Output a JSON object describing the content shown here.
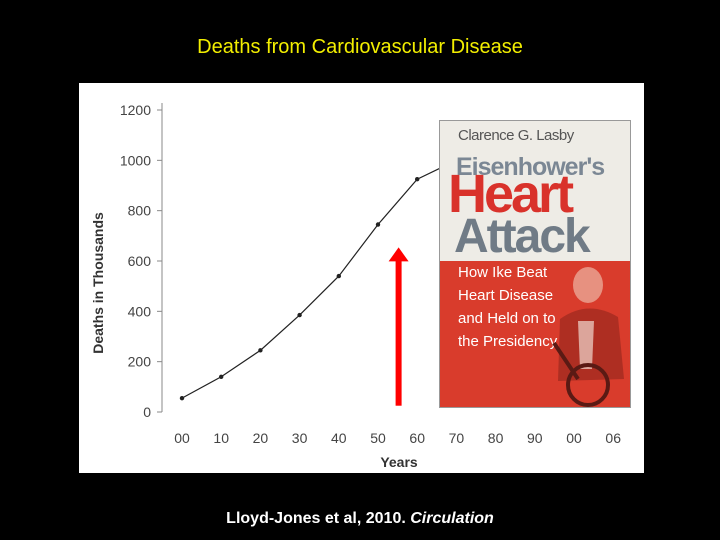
{
  "slide": {
    "title": "Deaths from Cardiovascular Disease",
    "citation_main": "Lloyd-Jones et al, 2010. ",
    "citation_journal": "Circulation"
  },
  "book": {
    "author": "Clarence G. Lasby",
    "title_line1": "Eisenhower's",
    "title_line2": "Heart",
    "title_line3": "Attack",
    "subtitle_lines": [
      "How Ike Beat",
      "Heart Disease",
      "and Held on to",
      "the Presidency"
    ],
    "colors": {
      "red": "#d93c2c",
      "gray": "#707b86"
    }
  },
  "chart_data": {
    "type": "line",
    "title": "",
    "xlabel": "Years",
    "ylabel": "Deaths in Thousands",
    "categories": [
      "00",
      "10",
      "20",
      "30",
      "40",
      "50",
      "60",
      "70",
      "80",
      "90",
      "00",
      "06"
    ],
    "ylim": [
      0,
      1200
    ],
    "yticks": [
      0,
      200,
      400,
      600,
      800,
      1000,
      1200
    ],
    "series": [
      {
        "values": [
          55,
          140,
          245,
          385,
          540,
          745,
          925,
          1000,
          null,
          null,
          null,
          null
        ]
      }
    ],
    "annotation": {
      "type": "arrow",
      "direction": "up",
      "color": "#ff0000",
      "from_y": 25,
      "to_y": 650,
      "between": [
        "50",
        "60"
      ]
    },
    "grid": false,
    "line_color": "#222222"
  }
}
